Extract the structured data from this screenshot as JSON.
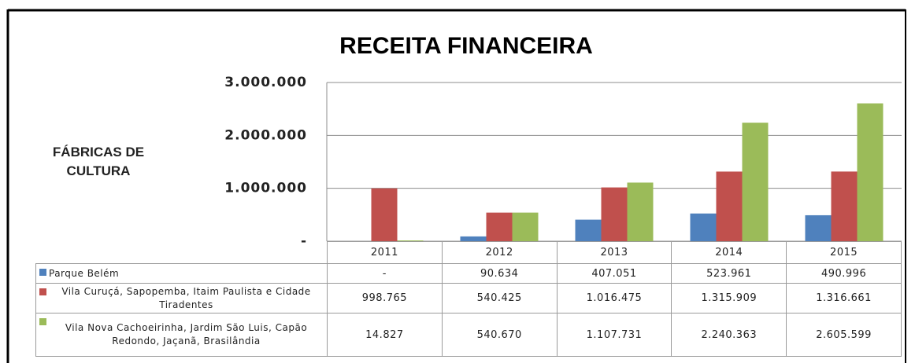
{
  "chart_data": {
    "type": "bar",
    "title": "RECEITA FINANCEIRA",
    "ylabel": "FÁBRICAS DE CULTURA",
    "categories": [
      "2011",
      "2012",
      "2013",
      "2014",
      "2015"
    ],
    "series": [
      {
        "name": "Parque Belém",
        "color": "#4f81bd",
        "values": [
          0,
          90634,
          407051,
          523961,
          490996
        ],
        "value_labels": [
          "-",
          "90.634",
          "407.051",
          "523.961",
          "490.996"
        ]
      },
      {
        "name": "Vila Curuçá, Sapopemba, Itaim Paulista e Cidade Tiradentes",
        "color": "#c0504d",
        "values": [
          998765,
          540425,
          1016475,
          1315909,
          1316661
        ],
        "value_labels": [
          "998.765",
          "540.425",
          "1.016.475",
          "1.315.909",
          "1.316.661"
        ]
      },
      {
        "name": "Vila Nova Cachoeirinha, Jardim São Luis, Capão Redondo, Jaçanã, Brasilândia",
        "color": "#9bbb59",
        "values": [
          14827,
          540670,
          1107731,
          2240363,
          2605599
        ],
        "value_labels": [
          "14.827",
          "540.670",
          "1.107.731",
          "2.240.363",
          "2.605.599"
        ]
      }
    ],
    "ylim": [
      0,
      3000000
    ],
    "yticks": [
      {
        "value": 0,
        "label": "-"
      },
      {
        "value": 1000000,
        "label": "1.000.000"
      },
      {
        "value": 2000000,
        "label": "2.000.000"
      },
      {
        "value": 3000000,
        "label": "3.000.000"
      }
    ],
    "grid": true
  }
}
